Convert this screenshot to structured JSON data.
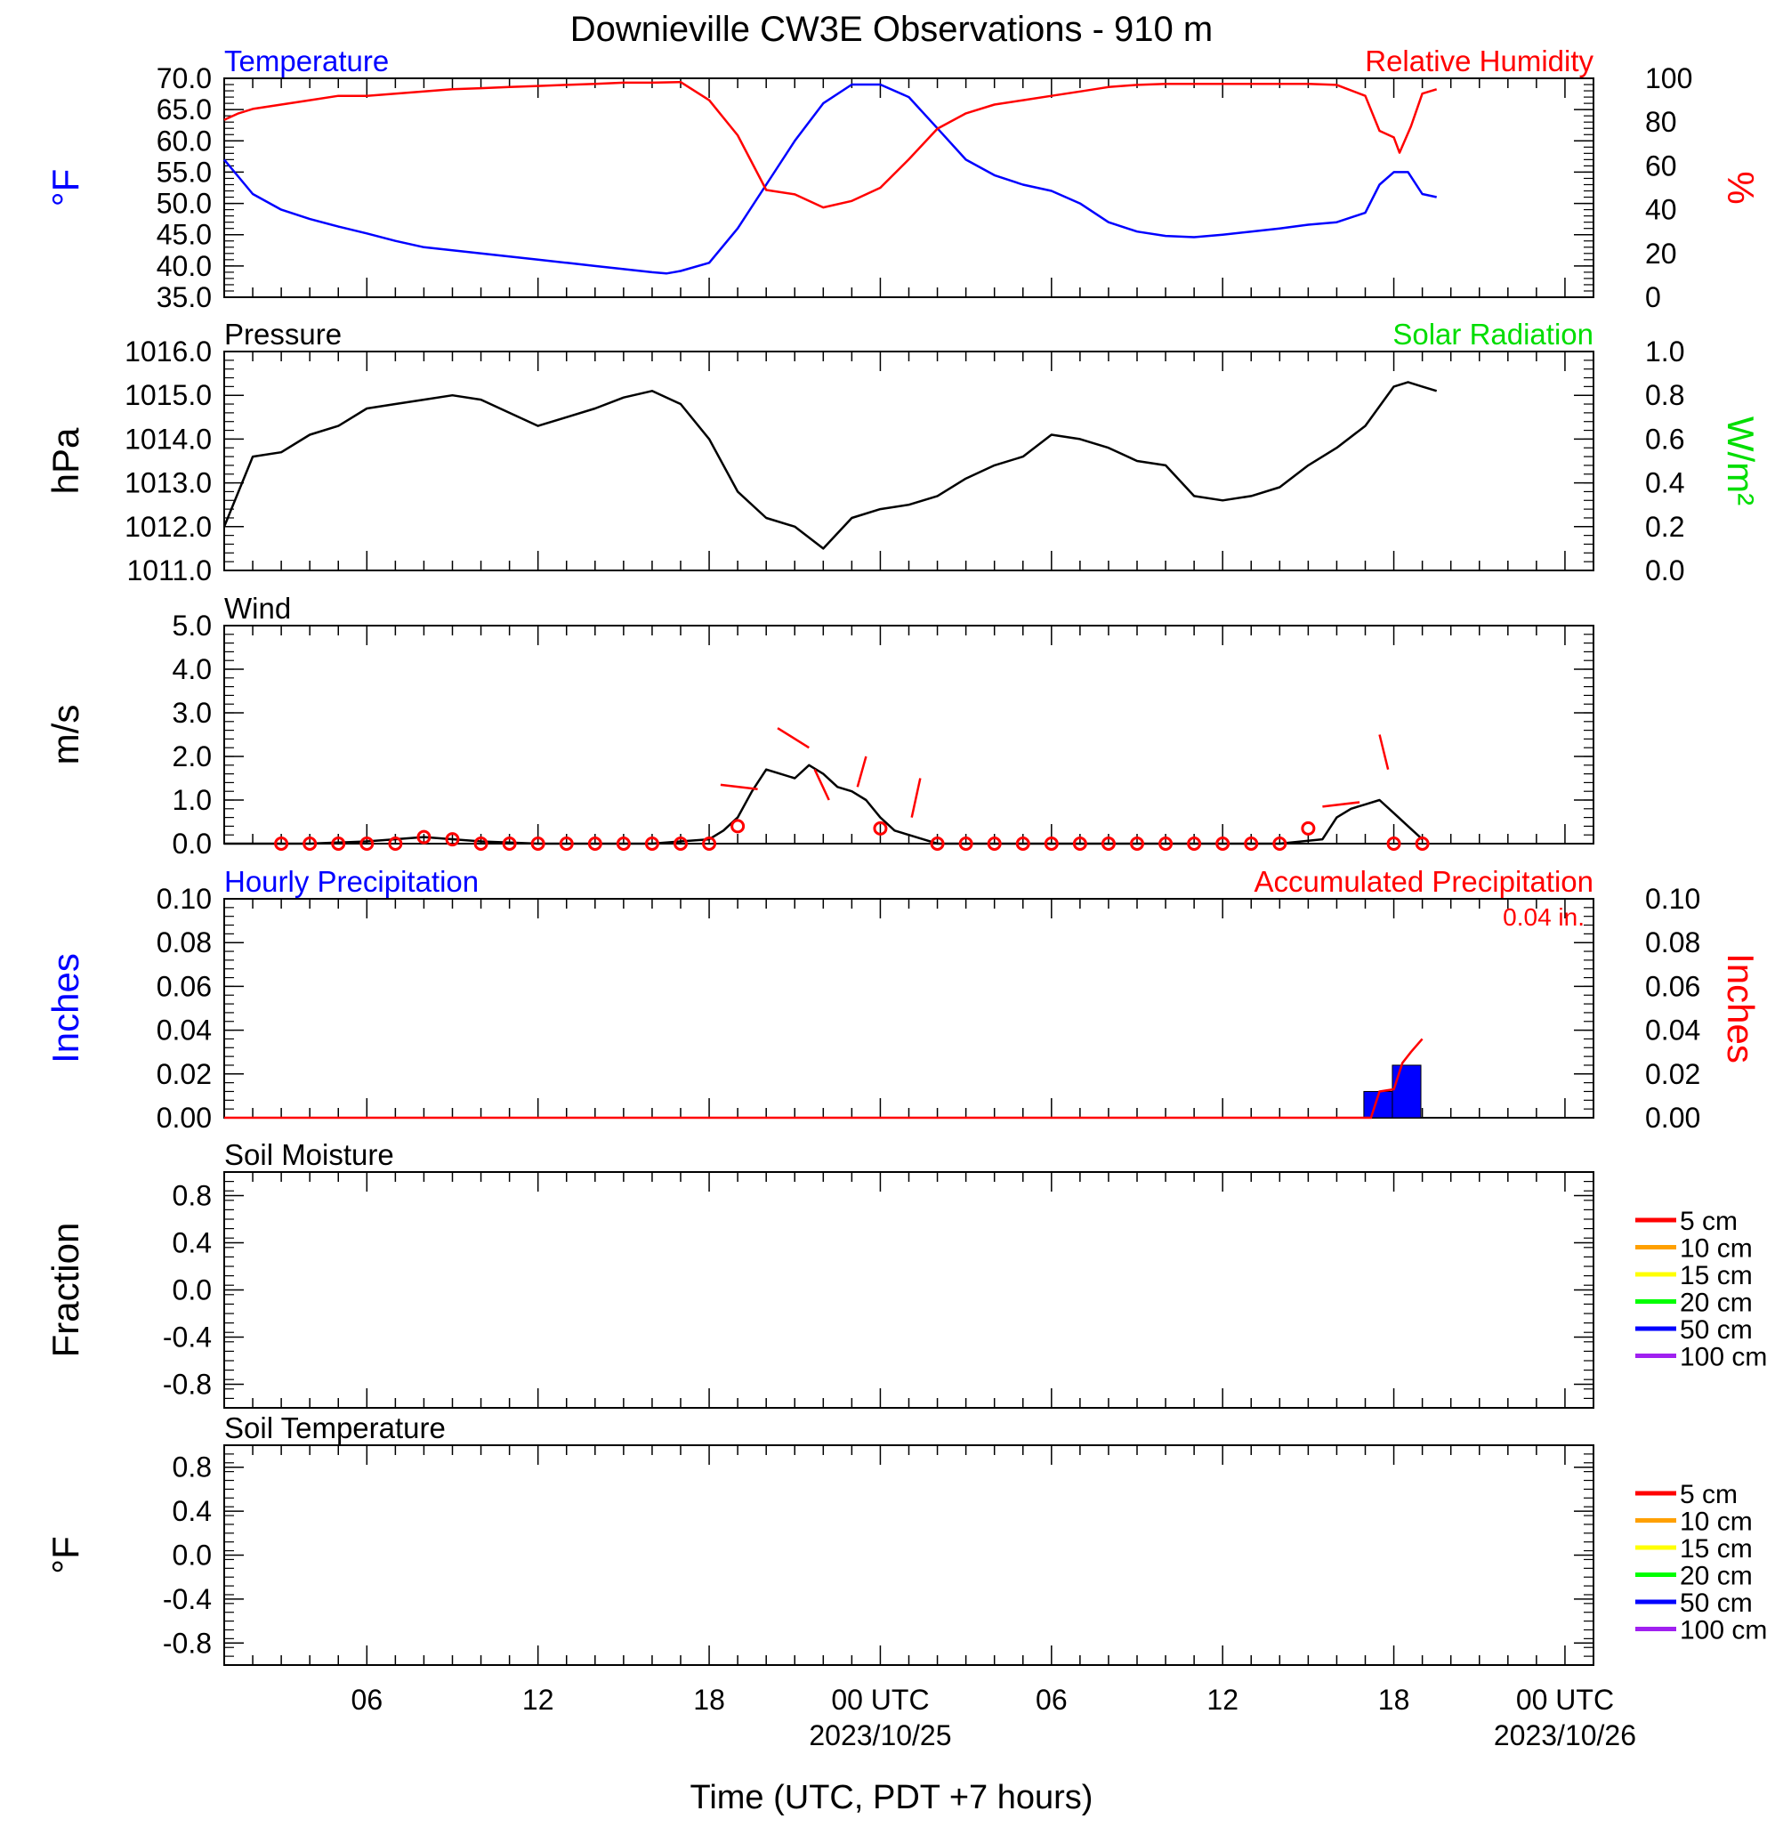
{
  "title": "Downieville CW3E Observations - 910 m",
  "xaxis": {
    "label": "Time (UTC, PDT +7 hours)",
    "ticks": [
      {
        "hour": 6,
        "label": "06",
        "date": ""
      },
      {
        "hour": 12,
        "label": "12",
        "date": ""
      },
      {
        "hour": 18,
        "label": "18",
        "date": ""
      },
      {
        "hour": 24,
        "label": "00 UTC",
        "date": "2023/10/25"
      },
      {
        "hour": 30,
        "label": "06",
        "date": ""
      },
      {
        "hour": 36,
        "label": "12",
        "date": ""
      },
      {
        "hour": 42,
        "label": "18",
        "date": ""
      },
      {
        "hour": 48,
        "label": "00 UTC",
        "date": "2023/10/26"
      }
    ],
    "range_hours": [
      1,
      49
    ]
  },
  "colors": {
    "temperature": "#0000ff",
    "humidity": "#ff0000",
    "pressure": "#000000",
    "solar": "#00dd00",
    "wind": "#000000",
    "wind_markers": "#ff0000",
    "hourly_precip": "#0000ff",
    "accum_precip": "#ff0000"
  },
  "chart_data": [
    {
      "type": "line",
      "panel": "temperature-humidity",
      "left_title": "Temperature",
      "right_title": "Relative Humidity",
      "ylabel_left": "°F",
      "ylabel_right": "%",
      "ylim_left": [
        35,
        70
      ],
      "ylim_right": [
        0,
        100
      ],
      "yticks_left": [
        "70.0",
        "65.0",
        "60.0",
        "55.0",
        "50.0",
        "45.0",
        "40.0",
        "35.0"
      ],
      "yticks_right": [
        "100",
        "80",
        "60",
        "40",
        "20",
        "0"
      ],
      "series": [
        {
          "name": "Temperature",
          "axis": "left",
          "x": [
            1,
            2,
            3,
            4,
            5,
            6,
            7,
            8,
            9,
            10,
            11,
            12,
            13,
            14,
            15,
            16,
            16.5,
            17,
            18,
            19,
            20,
            21,
            22,
            23,
            24,
            25,
            26,
            27,
            28,
            29,
            30,
            31,
            32,
            33,
            34,
            35,
            36,
            37,
            38,
            39,
            40,
            41,
            41.5,
            42,
            42.5,
            43,
            43.5
          ],
          "y": [
            57,
            51.5,
            49,
            47.5,
            46.3,
            45.2,
            44,
            43,
            42.5,
            42,
            41.5,
            41,
            40.5,
            40,
            39.5,
            39,
            38.8,
            39.2,
            40.5,
            46,
            53,
            60,
            66,
            69,
            69,
            67,
            62,
            57,
            54.5,
            53,
            52,
            50,
            47,
            45.5,
            44.8,
            44.6,
            45,
            45.5,
            46,
            46.6,
            47,
            48.5,
            53,
            55,
            55,
            51.5,
            51
          ]
        },
        {
          "name": "Relative Humidity",
          "axis": "right",
          "x": [
            1,
            1.5,
            2,
            3,
            4,
            5,
            6,
            7,
            8,
            9,
            10,
            11,
            12,
            13,
            14,
            15,
            16,
            17,
            18,
            19,
            20,
            21,
            22,
            23,
            24,
            25,
            26,
            27,
            28,
            29,
            30,
            31,
            32,
            33,
            34,
            35,
            36,
            37,
            38,
            39,
            40,
            41,
            41.5,
            42,
            42.2,
            42.6,
            43,
            43.5
          ],
          "y": [
            81,
            84,
            86,
            88,
            90,
            92,
            92,
            93,
            94,
            95,
            95.5,
            96,
            96.5,
            97,
            97.5,
            98,
            98,
            98.3,
            90,
            74,
            49,
            47,
            41,
            44,
            50,
            63,
            77,
            84,
            88,
            90,
            92,
            94,
            96,
            97,
            97.5,
            97.5,
            97.5,
            97.5,
            97.5,
            97.5,
            97,
            92,
            76,
            73,
            66,
            78,
            93,
            95
          ]
        }
      ]
    },
    {
      "type": "line",
      "panel": "pressure-solar",
      "left_title": "Pressure",
      "right_title": "Solar Radiation",
      "ylabel_left": "hPa",
      "ylabel_right": "W/m²",
      "ylim_left": [
        1011,
        1016
      ],
      "ylim_right": [
        0,
        1
      ],
      "yticks_left": [
        "1016.0",
        "1015.0",
        "1014.0",
        "1013.0",
        "1012.0",
        "1011.0"
      ],
      "yticks_right": [
        "1.0",
        "0.8",
        "0.6",
        "0.4",
        "0.2",
        "0.0"
      ],
      "series": [
        {
          "name": "Pressure",
          "axis": "left",
          "x": [
            1,
            2,
            3,
            4,
            5,
            6,
            7,
            8,
            9,
            10,
            11,
            12,
            13,
            14,
            15,
            16,
            17,
            18,
            19,
            20,
            21,
            22,
            23,
            24,
            25,
            26,
            27,
            28,
            29,
            30,
            31,
            32,
            33,
            34,
            35,
            36,
            37,
            38,
            39,
            40,
            41,
            42,
            42.5,
            43,
            43.5
          ],
          "y": [
            1012,
            1013.6,
            1013.7,
            1014.1,
            1014.3,
            1014.7,
            1014.8,
            1014.9,
            1015,
            1014.9,
            1014.6,
            1014.3,
            1014.5,
            1014.7,
            1014.95,
            1015.1,
            1014.8,
            1014.0,
            1012.8,
            1012.2,
            1012.0,
            1011.5,
            1012.2,
            1012.4,
            1012.5,
            1012.7,
            1013.1,
            1013.4,
            1013.6,
            1014.1,
            1014.0,
            1013.8,
            1013.5,
            1013.4,
            1012.7,
            1012.6,
            1012.7,
            1012.9,
            1013.4,
            1013.8,
            1014.3,
            1015.2,
            1015.3,
            1015.2,
            1015.1
          ]
        }
      ]
    },
    {
      "type": "line",
      "panel": "wind",
      "left_title": "Wind",
      "ylabel_left": "m/s",
      "ylim_left": [
        0,
        5
      ],
      "yticks_left": [
        "5.0",
        "4.0",
        "3.0",
        "2.0",
        "1.0",
        "0.0"
      ],
      "series": [
        {
          "name": "Wind speed",
          "axis": "left",
          "x": [
            1,
            2,
            4,
            6,
            8,
            10,
            12,
            14,
            16,
            17,
            18,
            18.5,
            19,
            19.5,
            20,
            20.5,
            21,
            21.5,
            22,
            22.5,
            23,
            23.5,
            24,
            24.5,
            25,
            25.5,
            26,
            28,
            30,
            32,
            34,
            36,
            38,
            39.5,
            40,
            40.5,
            41,
            41.5,
            42,
            42.5,
            43
          ],
          "y": [
            0,
            0,
            0,
            0.05,
            0.15,
            0.05,
            0,
            0,
            0,
            0.05,
            0.1,
            0.3,
            0.6,
            1.2,
            1.7,
            1.6,
            1.5,
            1.8,
            1.6,
            1.3,
            1.2,
            1.0,
            0.6,
            0.3,
            0.2,
            0.1,
            0,
            0,
            0,
            0,
            0,
            0,
            0,
            0.1,
            0.6,
            0.8,
            0.9,
            1.0,
            0.7,
            0.4,
            0.1
          ]
        }
      ],
      "hourly_markers": {
        "x": [
          3,
          4,
          5,
          6,
          7,
          8,
          9,
          10,
          11,
          12,
          13,
          14,
          15,
          16,
          17,
          18,
          19,
          24,
          26,
          27,
          28,
          29,
          30,
          31,
          32,
          33,
          34,
          35,
          36,
          37,
          38,
          39,
          42,
          43
        ],
        "speed": [
          0,
          0,
          0,
          0,
          0,
          0.15,
          0.1,
          0,
          0,
          0,
          0,
          0,
          0,
          0,
          0,
          0,
          0.4,
          0.35,
          0,
          0,
          0,
          0,
          0,
          0,
          0,
          0,
          0,
          0,
          0,
          0,
          0,
          0.35,
          0,
          0
        ]
      },
      "wind_barbs": [
        {
          "x": 19.7,
          "speed": 1.25,
          "to_dx": -1.3,
          "to_dy": 0.1
        },
        {
          "x": 21.5,
          "speed": 2.2,
          "to_dx": -1.1,
          "to_dy": 0.45
        },
        {
          "x": 22.2,
          "speed": 1.0,
          "to_dx": -0.5,
          "to_dy": 0.7
        },
        {
          "x": 23.2,
          "speed": 1.3,
          "to_dx": 0.3,
          "to_dy": 0.7
        },
        {
          "x": 25.1,
          "speed": 0.6,
          "to_dx": 0.3,
          "to_dy": 0.9
        },
        {
          "x": 40.8,
          "speed": 0.95,
          "to_dx": -1.3,
          "to_dy": -0.1
        },
        {
          "x": 41.8,
          "speed": 1.7,
          "to_dx": -0.3,
          "to_dy": 0.8
        }
      ]
    },
    {
      "type": "bar",
      "panel": "precipitation",
      "left_title": "Hourly Precipitation",
      "right_title": "Accumulated Precipitation",
      "annotation": "0.04 in.",
      "ylabel_left": "Inches",
      "ylabel_right": "Inches",
      "ylim_left": [
        0,
        0.1
      ],
      "ylim_right": [
        0,
        0.1
      ],
      "yticks_left": [
        "0.10",
        "0.08",
        "0.06",
        "0.04",
        "0.02",
        "0.00"
      ],
      "yticks_right": [
        "0.10",
        "0.08",
        "0.06",
        "0.04",
        "0.02",
        "0.00"
      ],
      "hourly_bars": {
        "x": [
          41,
          42
        ],
        "values": [
          0.012,
          0.024
        ]
      },
      "accumulated": {
        "x": [
          1,
          41.2,
          41.5,
          42,
          42.3,
          42.6,
          43
        ],
        "y": [
          0,
          0,
          0.012,
          0.013,
          0.025,
          0.03,
          0.036
        ]
      }
    },
    {
      "type": "line",
      "panel": "soil-moisture",
      "left_title": "Soil Moisture",
      "ylabel_left": "Fraction",
      "ylim_left": [
        -1,
        1
      ],
      "yticks_left": [
        "0.8",
        "0.4",
        "0.0",
        "-0.4",
        "-0.8"
      ],
      "legend": [
        {
          "label": "5 cm",
          "color": "#ff0000"
        },
        {
          "label": "10 cm",
          "color": "#ffa000"
        },
        {
          "label": "15 cm",
          "color": "#ffff00"
        },
        {
          "label": "20 cm",
          "color": "#00ff00"
        },
        {
          "label": "50 cm",
          "color": "#0000ff"
        },
        {
          "label": "100 cm",
          "color": "#a020f0"
        }
      ],
      "series": []
    },
    {
      "type": "line",
      "panel": "soil-temperature",
      "left_title": "Soil Temperature",
      "ylabel_left": "°F",
      "ylim_left": [
        -1,
        1
      ],
      "yticks_left": [
        "0.8",
        "0.4",
        "0.0",
        "-0.4",
        "-0.8"
      ],
      "legend": [
        {
          "label": "5 cm",
          "color": "#ff0000"
        },
        {
          "label": "10 cm",
          "color": "#ffa000"
        },
        {
          "label": "15 cm",
          "color": "#ffff00"
        },
        {
          "label": "20 cm",
          "color": "#00ff00"
        },
        {
          "label": "50 cm",
          "color": "#0000ff"
        },
        {
          "label": "100 cm",
          "color": "#a020f0"
        }
      ],
      "series": []
    }
  ]
}
